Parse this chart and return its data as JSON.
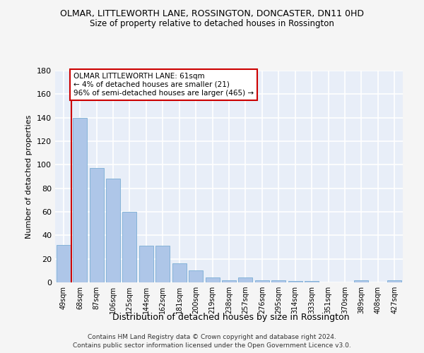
{
  "title": "OLMAR, LITTLEWORTH LANE, ROSSINGTON, DONCASTER, DN11 0HD",
  "subtitle": "Size of property relative to detached houses in Rossington",
  "xlabel": "Distribution of detached houses by size in Rossington",
  "ylabel": "Number of detached properties",
  "categories": [
    "49sqm",
    "68sqm",
    "87sqm",
    "106sqm",
    "125sqm",
    "144sqm",
    "162sqm",
    "181sqm",
    "200sqm",
    "219sqm",
    "238sqm",
    "257sqm",
    "276sqm",
    "295sqm",
    "314sqm",
    "333sqm",
    "351sqm",
    "370sqm",
    "389sqm",
    "408sqm",
    "427sqm"
  ],
  "values": [
    32,
    140,
    97,
    88,
    60,
    31,
    31,
    16,
    10,
    4,
    2,
    4,
    2,
    2,
    1,
    1,
    0,
    0,
    2,
    0,
    2
  ],
  "bar_color": "#aec6e8",
  "bar_edge_color": "#7aadd4",
  "annotation_line_color": "#cc0000",
  "annotation_box_facecolor": "#ffffff",
  "annotation_box_edgecolor": "#cc0000",
  "annotation_text_line1": "OLMAR LITTLEWORTH LANE: 61sqm",
  "annotation_text_line2": "← 4% of detached houses are smaller (21)",
  "annotation_text_line3": "96% of semi-detached houses are larger (465) →",
  "vline_x": 0.5,
  "ylim": [
    0,
    180
  ],
  "yticks": [
    0,
    20,
    40,
    60,
    80,
    100,
    120,
    140,
    160,
    180
  ],
  "ax_facecolor": "#e8eef8",
  "fig_facecolor": "#f5f5f5",
  "grid_color": "#ffffff",
  "footer_line1": "Contains HM Land Registry data © Crown copyright and database right 2024.",
  "footer_line2": "Contains public sector information licensed under the Open Government Licence v3.0."
}
